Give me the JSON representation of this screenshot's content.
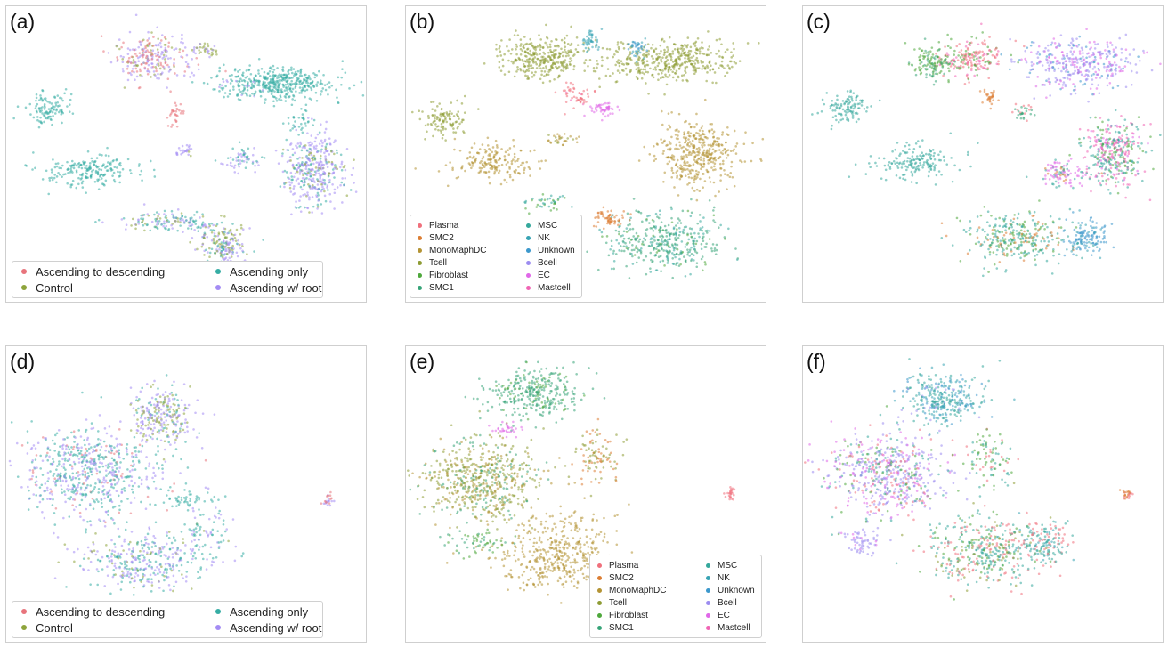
{
  "figure": {
    "panels": [
      {
        "label": "(a)",
        "legend_type": "condition",
        "legend_pos": "bottom-left"
      },
      {
        "label": "(b)",
        "legend_type": "celltype",
        "legend_pos": "bottom-left"
      },
      {
        "label": "(c)",
        "legend_type": "none",
        "legend_pos": "none"
      },
      {
        "label": "(d)",
        "legend_type": "condition",
        "legend_pos": "bottom-left"
      },
      {
        "label": "(e)",
        "legend_type": "celltype",
        "legend_pos": "bottom-right"
      },
      {
        "label": "(f)",
        "legend_type": "none",
        "legend_pos": "none"
      }
    ],
    "legends": {
      "condition": [
        {
          "name": "Ascending to descending",
          "color": "#e8747c"
        },
        {
          "name": "Control",
          "color": "#8ea43c"
        },
        {
          "name": "Ascending only",
          "color": "#36ada4"
        },
        {
          "name": "Ascending w/ root",
          "color": "#a48cf4"
        }
      ],
      "celltype": [
        {
          "name": "Plasma",
          "color": "#f0707c"
        },
        {
          "name": "SMC2",
          "color": "#dc7e34"
        },
        {
          "name": "MonoMaphDC",
          "color": "#b49434"
        },
        {
          "name": "Tcell",
          "color": "#8e9c34"
        },
        {
          "name": "Fibroblast",
          "color": "#4ea83c"
        },
        {
          "name": "SMC1",
          "color": "#36a478"
        },
        {
          "name": "MSC",
          "color": "#34a89c"
        },
        {
          "name": "NK",
          "color": "#38a4b4"
        },
        {
          "name": "Unknown",
          "color": "#3c98cc"
        },
        {
          "name": "Bcell",
          "color": "#9c8cf0"
        },
        {
          "name": "EC",
          "color": "#e068e8"
        },
        {
          "name": "Mastcell",
          "color": "#f064b4"
        }
      ]
    }
  },
  "chart_data": [
    {
      "type": "scatter",
      "panel": "(a)",
      "coloring": "condition",
      "xlim": [
        0,
        100
      ],
      "ylim": [
        0,
        100
      ],
      "clusters": [
        {
          "c": [
            40,
            84
          ],
          "s": [
            7,
            6
          ],
          "n": 260,
          "mix": {
            "Ascending to descending": 0.35,
            "Ascending w/ root": 0.5,
            "Control": 0.15
          }
        },
        {
          "c": [
            55,
            87
          ],
          "s": [
            3,
            2
          ],
          "n": 40,
          "mix": {
            "Control": 0.6,
            "Ascending w/ root": 0.4
          }
        },
        {
          "c": [
            78,
            75
          ],
          "s": [
            10,
            4
          ],
          "n": 380,
          "mix": {
            "Ascending only": 1.0
          }
        },
        {
          "c": [
            65,
            74
          ],
          "s": [
            6,
            3
          ],
          "n": 70,
          "mix": {
            "Ascending only": 0.85,
            "Ascending w/ root": 0.15
          }
        },
        {
          "c": [
            47,
            64
          ],
          "s": [
            1.5,
            3
          ],
          "n": 30,
          "mix": {
            "Ascending to descending": 1.0
          }
        },
        {
          "c": [
            10,
            66
          ],
          "s": [
            4,
            4
          ],
          "n": 110,
          "mix": {
            "Ascending only": 1.0
          }
        },
        {
          "c": [
            22,
            44
          ],
          "s": [
            10,
            4
          ],
          "n": 200,
          "mix": {
            "Ascending only": 1.0
          }
        },
        {
          "c": [
            50,
            51
          ],
          "s": [
            1.5,
            1.5
          ],
          "n": 25,
          "mix": {
            "Ascending w/ root": 0.7,
            "Control": 0.3
          }
        },
        {
          "c": [
            66,
            48
          ],
          "s": [
            4,
            3
          ],
          "n": 60,
          "mix": {
            "Ascending w/ root": 0.6,
            "Ascending only": 0.4
          }
        },
        {
          "c": [
            87,
            45
          ],
          "s": [
            6,
            9
          ],
          "n": 400,
          "mix": {
            "Ascending w/ root": 0.65,
            "Ascending only": 0.2,
            "Control": 0.15
          }
        },
        {
          "c": [
            45,
            26
          ],
          "s": [
            10,
            3
          ],
          "n": 150,
          "mix": {
            "Ascending only": 0.45,
            "Ascending w/ root": 0.35,
            "Control": 0.2
          }
        },
        {
          "c": [
            61,
            17
          ],
          "s": [
            5,
            5
          ],
          "n": 200,
          "mix": {
            "Ascending w/ root": 0.45,
            "Control": 0.35,
            "Ascending only": 0.2
          }
        },
        {
          "c": [
            83,
            62
          ],
          "s": [
            3,
            3
          ],
          "n": 30,
          "mix": {
            "Ascending only": 1.0
          }
        }
      ]
    },
    {
      "type": "scatter",
      "panel": "(b)",
      "coloring": "celltype",
      "xlim": [
        0,
        100
      ],
      "ylim": [
        0,
        100
      ],
      "clusters": [
        {
          "c": [
            37,
            84
          ],
          "s": [
            8,
            5
          ],
          "n": 320,
          "mix": {
            "Tcell": 1.0
          }
        },
        {
          "c": [
            74,
            83
          ],
          "s": [
            14,
            5
          ],
          "n": 430,
          "mix": {
            "Tcell": 1.0
          }
        },
        {
          "c": [
            51,
            90
          ],
          "s": [
            2,
            2.5
          ],
          "n": 45,
          "mix": {
            "NK": 1.0
          }
        },
        {
          "c": [
            65,
            88
          ],
          "s": [
            2,
            2
          ],
          "n": 40,
          "mix": {
            "NK": 0.5,
            "Unknown": 0.5
          }
        },
        {
          "c": [
            47,
            71
          ],
          "s": [
            3,
            3
          ],
          "n": 50,
          "mix": {
            "Plasma": 0.8,
            "Mastcell": 0.2
          }
        },
        {
          "c": [
            55,
            66
          ],
          "s": [
            3,
            2
          ],
          "n": 50,
          "mix": {
            "EC": 1.0
          }
        },
        {
          "c": [
            9,
            62
          ],
          "s": [
            4,
            4
          ],
          "n": 110,
          "mix": {
            "Tcell": 1.0
          }
        },
        {
          "c": [
            83,
            50
          ],
          "s": [
            8,
            8
          ],
          "n": 400,
          "mix": {
            "MonoMaphDC": 1.0
          }
        },
        {
          "c": [
            23,
            47
          ],
          "s": [
            8,
            4
          ],
          "n": 180,
          "mix": {
            "MonoMaphDC": 1.0
          }
        },
        {
          "c": [
            72,
            19
          ],
          "s": [
            12,
            7
          ],
          "n": 400,
          "mix": {
            "SMC1": 0.6,
            "MSC": 0.3,
            "Fibroblast": 0.1
          }
        },
        {
          "c": [
            57,
            27
          ],
          "s": [
            3,
            2
          ],
          "n": 60,
          "mix": {
            "SMC2": 1.0
          }
        },
        {
          "c": [
            38,
            33
          ],
          "s": [
            4,
            2
          ],
          "n": 40,
          "mix": {
            "Fibroblast": 0.6,
            "MSC": 0.4
          }
        },
        {
          "c": [
            43,
            55
          ],
          "s": [
            3,
            2
          ],
          "n": 30,
          "mix": {
            "MonoMaphDC": 0.7,
            "Tcell": 0.3
          }
        }
      ]
    },
    {
      "type": "scatter",
      "panel": "(c)",
      "coloring": "celltype",
      "xlim": [
        0,
        100
      ],
      "ylim": [
        0,
        100
      ],
      "clusters": [
        {
          "c": [
            47,
            84
          ],
          "s": [
            6,
            5
          ],
          "n": 200,
          "mix": {
            "Plasma": 0.5,
            "Fibroblast": 0.25,
            "Mastcell": 0.25
          }
        },
        {
          "c": [
            35,
            82
          ],
          "s": [
            4,
            4
          ],
          "n": 120,
          "mix": {
            "Fibroblast": 0.7,
            "SMC1": 0.3
          }
        },
        {
          "c": [
            78,
            82
          ],
          "s": [
            12,
            6
          ],
          "n": 380,
          "mix": {
            "Bcell": 0.5,
            "EC": 0.3,
            "Unknown": 0.2
          }
        },
        {
          "c": [
            10,
            66
          ],
          "s": [
            4,
            4
          ],
          "n": 110,
          "mix": {
            "MSC": 1.0
          }
        },
        {
          "c": [
            30,
            47
          ],
          "s": [
            8,
            4
          ],
          "n": 170,
          "mix": {
            "MSC": 1.0
          }
        },
        {
          "c": [
            88,
            50
          ],
          "s": [
            6,
            8
          ],
          "n": 380,
          "mix": {
            "Mastcell": 0.35,
            "MSC": 0.35,
            "Fibroblast": 0.2,
            "EC": 0.1
          }
        },
        {
          "c": [
            73,
            43
          ],
          "s": [
            5,
            3
          ],
          "n": 100,
          "mix": {
            "EC": 0.5,
            "SMC2": 0.2,
            "MSC": 0.3
          }
        },
        {
          "c": [
            60,
            20
          ],
          "s": [
            10,
            6
          ],
          "n": 320,
          "mix": {
            "MSC": 0.5,
            "Fibroblast": 0.3,
            "SMC2": 0.2
          }
        },
        {
          "c": [
            80,
            20
          ],
          "s": [
            4,
            4
          ],
          "n": 130,
          "mix": {
            "Unknown": 0.8,
            "NK": 0.2
          }
        },
        {
          "c": [
            52,
            70
          ],
          "s": [
            2,
            2
          ],
          "n": 30,
          "mix": {
            "SMC2": 1.0
          }
        },
        {
          "c": [
            62,
            65
          ],
          "s": [
            2,
            2
          ],
          "n": 30,
          "mix": {
            "SMC1": 0.6,
            "Plasma": 0.4
          }
        }
      ]
    },
    {
      "type": "scatter",
      "panel": "(d)",
      "coloring": "condition",
      "xlim": [
        0,
        100
      ],
      "ylim": [
        0,
        100
      ],
      "clusters": [
        {
          "c": [
            22,
            58
          ],
          "s": [
            14,
            11
          ],
          "n": 650,
          "mix": {
            "Ascending only": 0.5,
            "Ascending w/ root": 0.4,
            "Ascending to descending": 0.1
          }
        },
        {
          "c": [
            43,
            78
          ],
          "s": [
            6,
            7
          ],
          "n": 270,
          "mix": {
            "Ascending w/ root": 0.5,
            "Control": 0.3,
            "Ascending only": 0.2
          }
        },
        {
          "c": [
            38,
            26
          ],
          "s": [
            11,
            7
          ],
          "n": 330,
          "mix": {
            "Ascending w/ root": 0.45,
            "Ascending only": 0.4,
            "Control": 0.15
          }
        },
        {
          "c": [
            55,
            36
          ],
          "s": [
            6,
            8
          ],
          "n": 100,
          "mix": {
            "Ascending only": 0.5,
            "Ascending w/ root": 0.4,
            "Control": 0.1
          }
        },
        {
          "c": [
            91,
            48
          ],
          "s": [
            1,
            1.5
          ],
          "n": 25,
          "mix": {
            "Ascending w/ root": 0.6,
            "Ascending to descending": 0.4
          }
        },
        {
          "c": [
            50,
            48
          ],
          "s": [
            4,
            2
          ],
          "n": 40,
          "mix": {
            "Ascending only": 1.0
          }
        }
      ]
    },
    {
      "type": "scatter",
      "panel": "(e)",
      "coloring": "celltype",
      "xlim": [
        0,
        100
      ],
      "ylim": [
        0,
        100
      ],
      "clusters": [
        {
          "c": [
            35,
            86
          ],
          "s": [
            9,
            6
          ],
          "n": 320,
          "mix": {
            "SMC1": 0.8,
            "Fibroblast": 0.2
          }
        },
        {
          "c": [
            20,
            55
          ],
          "s": [
            12,
            10
          ],
          "n": 600,
          "mix": {
            "Tcell": 0.55,
            "MonoMaphDC": 0.25,
            "SMC1": 0.2
          }
        },
        {
          "c": [
            42,
            29
          ],
          "s": [
            12,
            9
          ],
          "n": 430,
          "mix": {
            "MonoMaphDC": 1.0
          }
        },
        {
          "c": [
            53,
            62
          ],
          "s": [
            4,
            7
          ],
          "n": 100,
          "mix": {
            "SMC2": 0.5,
            "Tcell": 0.5
          }
        },
        {
          "c": [
            92,
            50
          ],
          "s": [
            1,
            1.5
          ],
          "n": 25,
          "mix": {
            "Plasma": 1.0
          }
        },
        {
          "c": [
            27,
            73
          ],
          "s": [
            3,
            2
          ],
          "n": 30,
          "mix": {
            "EC": 1.0
          }
        },
        {
          "c": [
            18,
            33
          ],
          "s": [
            6,
            3
          ],
          "n": 60,
          "mix": {
            "Fibroblast": 0.7,
            "SMC1": 0.3
          }
        }
      ]
    },
    {
      "type": "scatter",
      "panel": "(f)",
      "coloring": "celltype",
      "xlim": [
        0,
        100
      ],
      "ylim": [
        0,
        100
      ],
      "clusters": [
        {
          "c": [
            38,
            84
          ],
          "s": [
            8,
            6
          ],
          "n": 320,
          "mix": {
            "MSC": 0.4,
            "NK": 0.3,
            "Unknown": 0.2,
            "Bcell": 0.1
          }
        },
        {
          "c": [
            22,
            57
          ],
          "s": [
            12,
            10
          ],
          "n": 600,
          "mix": {
            "Bcell": 0.4,
            "EC": 0.2,
            "Plasma": 0.15,
            "Fibroblast": 0.1,
            "MSC": 0.15
          }
        },
        {
          "c": [
            50,
            30
          ],
          "s": [
            11,
            8
          ],
          "n": 420,
          "mix": {
            "MSC": 0.4,
            "Plasma": 0.25,
            "Tcell": 0.15,
            "Fibroblast": 0.2
          }
        },
        {
          "c": [
            68,
            32
          ],
          "s": [
            5,
            5
          ],
          "n": 150,
          "mix": {
            "MSC": 0.5,
            "Plasma": 0.3,
            "NK": 0.2
          }
        },
        {
          "c": [
            92,
            50
          ],
          "s": [
            1,
            1.5
          ],
          "n": 25,
          "mix": {
            "Plasma": 0.5,
            "SMC2": 0.5
          }
        },
        {
          "c": [
            15,
            33
          ],
          "s": [
            4,
            3
          ],
          "n": 60,
          "mix": {
            "Bcell": 0.8,
            "EC": 0.2
          }
        },
        {
          "c": [
            52,
            62
          ],
          "s": [
            4,
            7
          ],
          "n": 90,
          "mix": {
            "Fibroblast": 0.5,
            "MSC": 0.3,
            "Plasma": 0.2
          }
        }
      ]
    }
  ]
}
